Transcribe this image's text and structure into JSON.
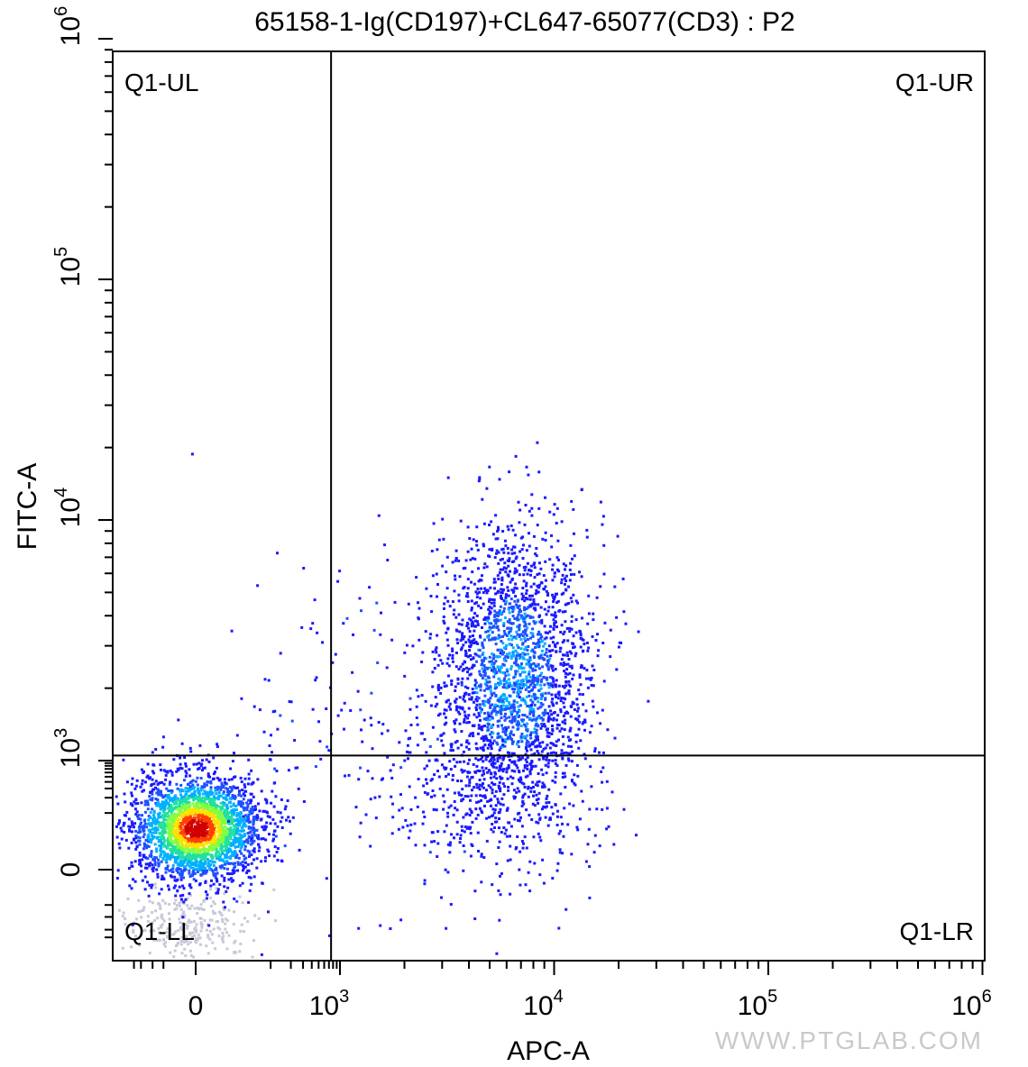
{
  "chart_data": {
    "type": "scatter",
    "subtype": "flow-cytometry-density-dot-plot",
    "title": "65158-1-Ig(CD197)+CL647-65077(CD3) : P2",
    "xlabel": "APC-A",
    "ylabel": "FITC-A",
    "x_scale": "biexponential",
    "y_scale": "biexponential",
    "x_ticks": [
      {
        "value": 0,
        "base": "0",
        "exp": ""
      },
      {
        "value": 1000,
        "base": "10",
        "exp": "3"
      },
      {
        "value": 10000,
        "base": "10",
        "exp": "4"
      },
      {
        "value": 100000,
        "base": "10",
        "exp": "5"
      },
      {
        "value": 1000000,
        "base": "10",
        "exp": "6"
      }
    ],
    "y_ticks": [
      {
        "value": 0,
        "base": "0",
        "exp": ""
      },
      {
        "value": 1000,
        "base": "10",
        "exp": "3"
      },
      {
        "value": 10000,
        "base": "10",
        "exp": "4"
      },
      {
        "value": 100000,
        "base": "10",
        "exp": "5"
      },
      {
        "value": 1000000,
        "base": "10",
        "exp": "6"
      }
    ],
    "gates": {
      "x_threshold": 750,
      "y_threshold": 1050
    },
    "quadrants": [
      {
        "label": "Q1-UL",
        "position": "top-left"
      },
      {
        "label": "Q1-UR",
        "position": "top-right"
      },
      {
        "label": "Q1-LL",
        "position": "bottom-left"
      },
      {
        "label": "Q1-LR",
        "position": "bottom-right"
      }
    ],
    "populations": [
      {
        "name": "",
        "x_center": 0,
        "y_center": 50,
        "note": "dense CD3-negative cluster near origin"
      },
      {
        "name": "",
        "x_center": 7000,
        "y_center": 2500,
        "note": "CD3-positive cluster spanning 3000-15000 on x and 300-15000 on y"
      }
    ],
    "colormap": [
      "#1a1aff",
      "#1f4fff",
      "#00b0ff",
      "#20e0a0",
      "#80ff40",
      "#ffe000",
      "#ff4000",
      "#d00000"
    ],
    "grid": false,
    "legend": "none"
  },
  "watermark": "WWW.PTGLAB.COM"
}
